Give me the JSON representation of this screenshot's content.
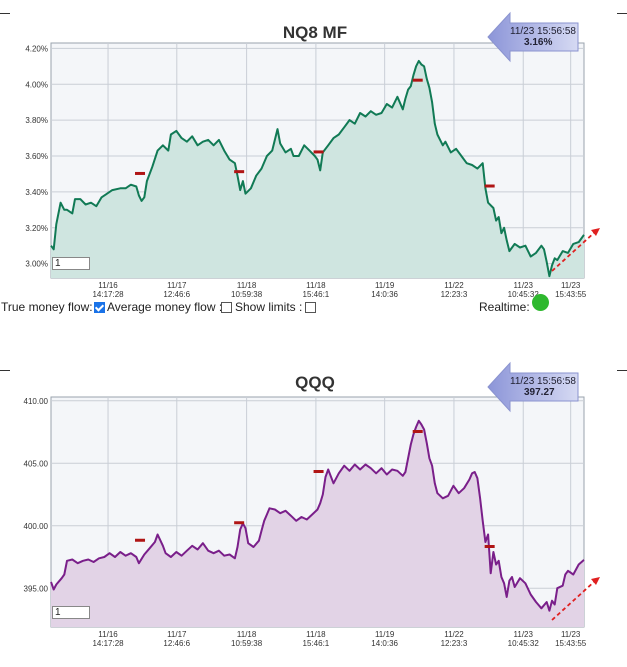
{
  "controls": {
    "true_money_flow_label": "True money flow:",
    "average_money_flow_label": "Average money flow :",
    "show_limits_label": "Show limits :",
    "realtime_label": "Realtime:",
    "true_money_flow_checked": true,
    "average_money_flow_checked": false,
    "show_limits_checked": false,
    "realtime_color": "#2eb82e"
  },
  "chart_data": [
    {
      "type": "area",
      "title": "NQ8 MF",
      "range_input": "1",
      "line_color": "#117a55",
      "fill_color": "#cfe5e0",
      "ylim": [
        2.92,
        4.23
      ],
      "yticks": [
        "3.00%",
        "3.20%",
        "3.40%",
        "3.60%",
        "3.80%",
        "4.00%",
        "4.20%"
      ],
      "ytick_values": [
        3.0,
        3.2,
        3.4,
        3.6,
        3.8,
        4.0,
        4.2
      ],
      "x_labels": [
        [
          "11/16",
          "14:17:28"
        ],
        [
          "11/17",
          "12:46:6"
        ],
        [
          "11/18",
          "10:59:38"
        ],
        [
          "11/18",
          "15:46:1"
        ],
        [
          "11/19",
          "14:0:36"
        ],
        [
          "11/22",
          "12:23:3"
        ],
        [
          "11/23",
          "10:45:32"
        ],
        [
          "11/23",
          "15:43:55"
        ]
      ],
      "x_label_positions": [
        0.107,
        0.236,
        0.367,
        0.497,
        0.626,
        0.756,
        0.886,
        0.975
      ],
      "callout": {
        "time": "11/23 15:56:58",
        "value": "3.16%"
      },
      "series_points": [
        [
          0.0,
          3.1
        ],
        [
          0.005,
          3.08
        ],
        [
          0.01,
          3.22
        ],
        [
          0.018,
          3.34
        ],
        [
          0.025,
          3.3
        ],
        [
          0.03,
          3.3
        ],
        [
          0.04,
          3.28
        ],
        [
          0.045,
          3.36
        ],
        [
          0.055,
          3.36
        ],
        [
          0.065,
          3.33
        ],
        [
          0.075,
          3.34
        ],
        [
          0.085,
          3.32
        ],
        [
          0.095,
          3.37
        ],
        [
          0.105,
          3.39
        ],
        [
          0.115,
          3.41
        ],
        [
          0.13,
          3.42
        ],
        [
          0.14,
          3.42
        ],
        [
          0.15,
          3.44
        ],
        [
          0.16,
          3.43
        ],
        [
          0.165,
          3.38
        ],
        [
          0.17,
          3.35
        ],
        [
          0.175,
          3.37
        ],
        [
          0.18,
          3.46
        ],
        [
          0.19,
          3.54
        ],
        [
          0.2,
          3.63
        ],
        [
          0.21,
          3.66
        ],
        [
          0.22,
          3.63
        ],
        [
          0.225,
          3.72
        ],
        [
          0.235,
          3.74
        ],
        [
          0.245,
          3.7
        ],
        [
          0.255,
          3.68
        ],
        [
          0.265,
          3.71
        ],
        [
          0.275,
          3.66
        ],
        [
          0.285,
          3.68
        ],
        [
          0.295,
          3.69
        ],
        [
          0.305,
          3.66
        ],
        [
          0.315,
          3.69
        ],
        [
          0.325,
          3.63
        ],
        [
          0.335,
          3.58
        ],
        [
          0.345,
          3.56
        ],
        [
          0.35,
          3.49
        ],
        [
          0.355,
          3.41
        ],
        [
          0.36,
          3.46
        ],
        [
          0.365,
          3.39
        ],
        [
          0.375,
          3.42
        ],
        [
          0.385,
          3.49
        ],
        [
          0.395,
          3.53
        ],
        [
          0.405,
          3.6
        ],
        [
          0.415,
          3.63
        ],
        [
          0.425,
          3.75
        ],
        [
          0.43,
          3.67
        ],
        [
          0.44,
          3.62
        ],
        [
          0.45,
          3.64
        ],
        [
          0.455,
          3.6
        ],
        [
          0.465,
          3.6
        ],
        [
          0.475,
          3.66
        ],
        [
          0.485,
          3.63
        ],
        [
          0.495,
          3.6
        ],
        [
          0.5,
          3.58
        ],
        [
          0.505,
          3.52
        ],
        [
          0.51,
          3.62
        ],
        [
          0.52,
          3.66
        ],
        [
          0.53,
          3.7
        ],
        [
          0.54,
          3.72
        ],
        [
          0.55,
          3.76
        ],
        [
          0.56,
          3.8
        ],
        [
          0.57,
          3.78
        ],
        [
          0.58,
          3.84
        ],
        [
          0.59,
          3.82
        ],
        [
          0.6,
          3.85
        ],
        [
          0.61,
          3.83
        ],
        [
          0.62,
          3.84
        ],
        [
          0.63,
          3.89
        ],
        [
          0.64,
          3.87
        ],
        [
          0.65,
          3.93
        ],
        [
          0.66,
          3.86
        ],
        [
          0.665,
          3.92
        ],
        [
          0.67,
          3.97
        ],
        [
          0.675,
          3.99
        ],
        [
          0.68,
          4.05
        ],
        [
          0.685,
          4.1
        ],
        [
          0.69,
          4.13
        ],
        [
          0.695,
          4.11
        ],
        [
          0.7,
          4.1
        ],
        [
          0.705,
          4.03
        ],
        [
          0.71,
          3.98
        ],
        [
          0.715,
          3.9
        ],
        [
          0.72,
          3.78
        ],
        [
          0.725,
          3.72
        ],
        [
          0.73,
          3.69
        ],
        [
          0.735,
          3.66
        ],
        [
          0.74,
          3.68
        ],
        [
          0.75,
          3.62
        ],
        [
          0.76,
          3.64
        ],
        [
          0.77,
          3.6
        ],
        [
          0.78,
          3.56
        ],
        [
          0.79,
          3.55
        ],
        [
          0.8,
          3.53
        ],
        [
          0.81,
          3.56
        ],
        [
          0.815,
          3.42
        ],
        [
          0.82,
          3.34
        ],
        [
          0.83,
          3.31
        ],
        [
          0.835,
          3.24
        ],
        [
          0.84,
          3.26
        ],
        [
          0.845,
          3.17
        ],
        [
          0.85,
          3.2
        ],
        [
          0.855,
          3.13
        ],
        [
          0.86,
          3.07
        ],
        [
          0.87,
          3.11
        ],
        [
          0.88,
          3.09
        ],
        [
          0.89,
          3.1
        ],
        [
          0.9,
          3.04
        ],
        [
          0.91,
          3.06
        ],
        [
          0.92,
          3.1
        ],
        [
          0.925,
          3.08
        ],
        [
          0.93,
          3.01
        ],
        [
          0.935,
          2.93
        ],
        [
          0.94,
          2.99
        ],
        [
          0.945,
          3.03
        ],
        [
          0.95,
          3.02
        ],
        [
          0.96,
          3.07
        ],
        [
          0.97,
          3.06
        ],
        [
          0.98,
          3.11
        ],
        [
          0.99,
          3.12
        ],
        [
          1.0,
          3.16
        ]
      ],
      "markers": [
        [
          0.167,
          3.5
        ],
        [
          0.353,
          3.51
        ],
        [
          0.502,
          3.62
        ],
        [
          0.688,
          4.02
        ],
        [
          0.823,
          3.43
        ]
      ]
    },
    {
      "type": "area",
      "title": "QQQ",
      "range_input": "1",
      "line_color": "#7a1f8a",
      "fill_color": "#e2d3e6",
      "ylim": [
        391.9,
        410.3
      ],
      "yticks": [
        "395.00",
        "400.00",
        "405.00",
        "410.00"
      ],
      "ytick_values": [
        395,
        400,
        405,
        410
      ],
      "x_labels": [
        [
          "11/16",
          "14:17:28"
        ],
        [
          "11/17",
          "12:46:6"
        ],
        [
          "11/18",
          "10:59:38"
        ],
        [
          "11/18",
          "15:46:1"
        ],
        [
          "11/19",
          "14:0:36"
        ],
        [
          "11/22",
          "12:23:3"
        ],
        [
          "11/23",
          "10:45:32"
        ],
        [
          "11/23",
          "15:43:55"
        ]
      ],
      "x_label_positions": [
        0.107,
        0.236,
        0.367,
        0.497,
        0.626,
        0.756,
        0.886,
        0.975
      ],
      "callout": {
        "time": "11/23 15:56:58",
        "value": "397.27"
      },
      "series_points": [
        [
          0.0,
          395.5
        ],
        [
          0.005,
          394.9
        ],
        [
          0.01,
          395.3
        ],
        [
          0.02,
          395.8
        ],
        [
          0.025,
          396.1
        ],
        [
          0.03,
          397.2
        ],
        [
          0.04,
          397.3
        ],
        [
          0.05,
          397.0
        ],
        [
          0.06,
          397.2
        ],
        [
          0.07,
          397.3
        ],
        [
          0.08,
          397.1
        ],
        [
          0.09,
          397.4
        ],
        [
          0.1,
          397.5
        ],
        [
          0.11,
          397.8
        ],
        [
          0.12,
          397.5
        ],
        [
          0.13,
          397.9
        ],
        [
          0.14,
          397.6
        ],
        [
          0.15,
          397.8
        ],
        [
          0.16,
          397.5
        ],
        [
          0.165,
          397.0
        ],
        [
          0.175,
          397.7
        ],
        [
          0.185,
          398.2
        ],
        [
          0.195,
          398.7
        ],
        [
          0.2,
          399.3
        ],
        [
          0.21,
          398.4
        ],
        [
          0.215,
          397.8
        ],
        [
          0.225,
          397.5
        ],
        [
          0.235,
          397.9
        ],
        [
          0.245,
          397.6
        ],
        [
          0.255,
          398.0
        ],
        [
          0.265,
          398.4
        ],
        [
          0.275,
          398.1
        ],
        [
          0.285,
          398.6
        ],
        [
          0.295,
          398.0
        ],
        [
          0.305,
          397.8
        ],
        [
          0.315,
          398.0
        ],
        [
          0.325,
          397.6
        ],
        [
          0.335,
          397.7
        ],
        [
          0.345,
          397.4
        ],
        [
          0.35,
          398.3
        ],
        [
          0.355,
          399.7
        ],
        [
          0.36,
          400.2
        ],
        [
          0.365,
          399.8
        ],
        [
          0.37,
          398.6
        ],
        [
          0.38,
          398.3
        ],
        [
          0.39,
          398.8
        ],
        [
          0.395,
          399.6
        ],
        [
          0.4,
          400.4
        ],
        [
          0.405,
          400.9
        ],
        [
          0.41,
          401.4
        ],
        [
          0.42,
          401.3
        ],
        [
          0.43,
          401.0
        ],
        [
          0.44,
          401.2
        ],
        [
          0.45,
          400.8
        ],
        [
          0.46,
          400.4
        ],
        [
          0.47,
          400.7
        ],
        [
          0.48,
          400.5
        ],
        [
          0.49,
          400.9
        ],
        [
          0.5,
          401.3
        ],
        [
          0.505,
          401.8
        ],
        [
          0.51,
          402.5
        ],
        [
          0.515,
          403.9
        ],
        [
          0.52,
          404.5
        ],
        [
          0.53,
          403.4
        ],
        [
          0.54,
          404.2
        ],
        [
          0.55,
          404.8
        ],
        [
          0.56,
          404.4
        ],
        [
          0.57,
          404.9
        ],
        [
          0.58,
          404.5
        ],
        [
          0.59,
          404.9
        ],
        [
          0.6,
          404.6
        ],
        [
          0.61,
          404.2
        ],
        [
          0.62,
          404.6
        ],
        [
          0.63,
          404.1
        ],
        [
          0.64,
          404.5
        ],
        [
          0.65,
          404.4
        ],
        [
          0.66,
          404.0
        ],
        [
          0.665,
          404.3
        ],
        [
          0.675,
          406.5
        ],
        [
          0.68,
          407.3
        ],
        [
          0.685,
          407.9
        ],
        [
          0.69,
          408.4
        ],
        [
          0.695,
          408.1
        ],
        [
          0.7,
          407.7
        ],
        [
          0.705,
          406.6
        ],
        [
          0.71,
          405.4
        ],
        [
          0.715,
          404.8
        ],
        [
          0.72,
          403.4
        ],
        [
          0.725,
          402.6
        ],
        [
          0.735,
          402.2
        ],
        [
          0.745,
          402.4
        ],
        [
          0.755,
          403.2
        ],
        [
          0.765,
          402.6
        ],
        [
          0.775,
          403.0
        ],
        [
          0.785,
          403.7
        ],
        [
          0.79,
          404.2
        ],
        [
          0.795,
          404.3
        ],
        [
          0.8,
          403.8
        ],
        [
          0.805,
          402.2
        ],
        [
          0.81,
          400.4
        ],
        [
          0.815,
          398.7
        ],
        [
          0.82,
          399.3
        ],
        [
          0.825,
          396.2
        ],
        [
          0.83,
          397.9
        ],
        [
          0.835,
          396.9
        ],
        [
          0.84,
          397.2
        ],
        [
          0.845,
          395.9
        ],
        [
          0.85,
          395.4
        ],
        [
          0.855,
          394.3
        ],
        [
          0.86,
          395.6
        ],
        [
          0.865,
          395.9
        ],
        [
          0.87,
          395.1
        ],
        [
          0.88,
          395.8
        ],
        [
          0.89,
          395.4
        ],
        [
          0.9,
          394.5
        ],
        [
          0.91,
          393.9
        ],
        [
          0.92,
          393.4
        ],
        [
          0.93,
          393.9
        ],
        [
          0.935,
          393.2
        ],
        [
          0.94,
          394.0
        ],
        [
          0.945,
          393.7
        ],
        [
          0.95,
          395.0
        ],
        [
          0.96,
          395.2
        ],
        [
          0.965,
          396.1
        ],
        [
          0.97,
          396.4
        ],
        [
          0.98,
          396.1
        ],
        [
          0.99,
          396.9
        ],
        [
          1.0,
          397.27
        ]
      ],
      "markers": [
        [
          0.167,
          398.8
        ],
        [
          0.353,
          400.2
        ],
        [
          0.502,
          404.3
        ],
        [
          0.688,
          407.5
        ],
        [
          0.823,
          398.3
        ]
      ]
    }
  ]
}
